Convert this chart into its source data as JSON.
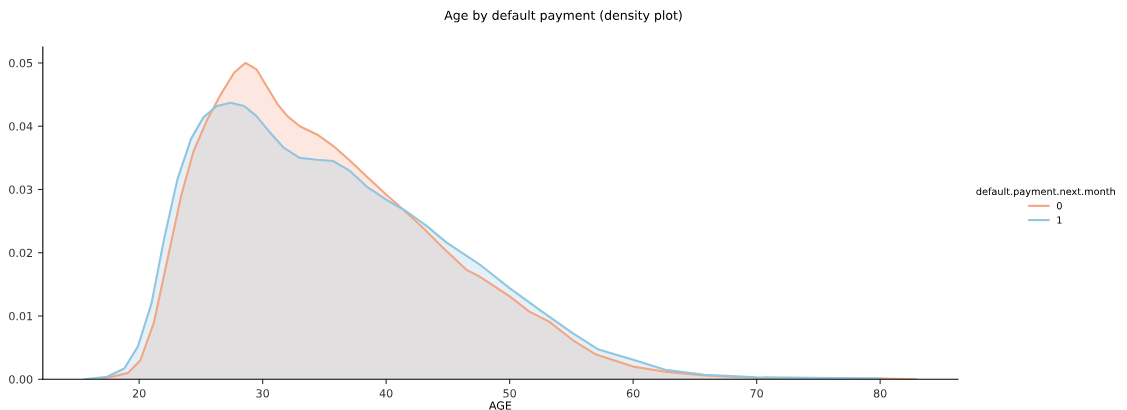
{
  "chart_data": {
    "type": "area",
    "title": "Age by default payment (density plot)",
    "xlabel": "AGE",
    "legend_title": "default.payment.next.month",
    "legend": "right",
    "grid": false,
    "xlim": [
      12.2,
      86.3
    ],
    "xticks": [
      20,
      30,
      40,
      50,
      60,
      70,
      80
    ],
    "ylim": [
      0,
      0.0525
    ],
    "yticks": [
      {
        "value": 0,
        "label": "0.00"
      },
      {
        "value": 0.01,
        "label": "0.01"
      },
      {
        "value": 0.02,
        "label": "0.02"
      },
      {
        "value": 0.03,
        "label": "0.03"
      },
      {
        "value": 0.04,
        "label": "0.04"
      },
      {
        "value": 0.05,
        "label": "0.05"
      }
    ],
    "series": [
      {
        "name": "0",
        "color": "#f4a582",
        "x": [
          16.9,
          19.1,
          20.1,
          21.2,
          22.3,
          23.4,
          24.4,
          25.5,
          26.6,
          27.7,
          28.6,
          29.5,
          30.3,
          31.2,
          32.0,
          33.0,
          34.4,
          35.7,
          37.1,
          38.4,
          40.0,
          41.4,
          43.0,
          44.6,
          46.5,
          47.5,
          50.0,
          51.6,
          53.2,
          55.1,
          57.0,
          60.0,
          62.6,
          65.8,
          70.0,
          80.1,
          82.9
        ],
        "values": [
          0,
          0.001,
          0.003,
          0.009,
          0.019,
          0.029,
          0.036,
          0.041,
          0.045,
          0.0485,
          0.05,
          0.049,
          0.0464,
          0.0435,
          0.0416,
          0.04,
          0.0387,
          0.0369,
          0.0345,
          0.0321,
          0.0292,
          0.0268,
          0.0239,
          0.0208,
          0.0173,
          0.0163,
          0.0131,
          0.0107,
          0.0091,
          0.0062,
          0.0039,
          0.002,
          0.0012,
          0.0006,
          0.0002,
          0.0001,
          0
        ]
      },
      {
        "name": "1",
        "color": "#92c5de",
        "x": [
          15.6,
          17.4,
          18.8,
          19.9,
          21.0,
          22.0,
          23.1,
          24.2,
          25.2,
          26.3,
          27.4,
          28.5,
          29.5,
          30.6,
          31.7,
          33.0,
          34.4,
          35.7,
          37.1,
          38.4,
          40.0,
          41.6,
          43.3,
          44.9,
          47.6,
          50.0,
          52.4,
          55.1,
          57.2,
          60.0,
          62.6,
          65.8,
          70.0,
          80.1
        ],
        "values": [
          0,
          0.0004,
          0.0017,
          0.0052,
          0.012,
          0.022,
          0.0316,
          0.038,
          0.0414,
          0.0432,
          0.0437,
          0.0432,
          0.0416,
          0.039,
          0.0366,
          0.035,
          0.0347,
          0.0345,
          0.0329,
          0.0305,
          0.0284,
          0.0266,
          0.0242,
          0.0216,
          0.0181,
          0.0144,
          0.011,
          0.0073,
          0.0047,
          0.0031,
          0.0015,
          0.0007,
          0.0003,
          0.0001
        ]
      }
    ]
  }
}
